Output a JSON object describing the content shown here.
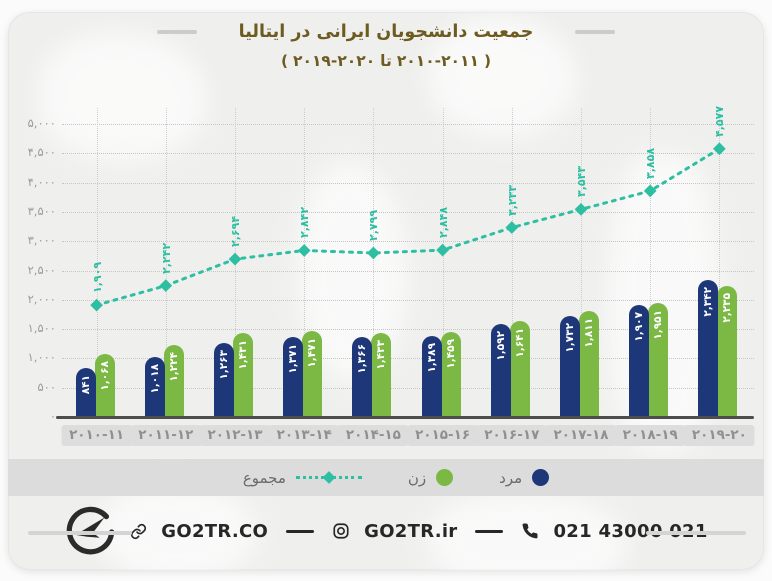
{
  "title": "جمعیت دانشجویان ایرانی در ایتالیا",
  "subtitle": {
    "open": "(",
    "later_range": "۲۰۱۹-۲۰۲۰",
    "connector": "تا",
    "earlier_range": "۲۰۱۰-۲۰۱۱",
    "close": ")"
  },
  "chart_data": {
    "type": "bar",
    "title": "جمعیت دانشجویان ایرانی در ایتالیا (۲۰۱۰-۲۰۱۱ تا ۲۰۱۹-۲۰۲۰)",
    "categories": [
      "2010-11",
      "2011-12",
      "2012-13",
      "2013-14",
      "2014-15",
      "2015-16",
      "2016-17",
      "2017-18",
      "2018-19",
      "2019-20"
    ],
    "x_labels_fa": [
      "۲۰۱۰-۱۱",
      "۲۰۱۱-۱۲",
      "۲۰۱۲-۱۳",
      "۲۰۱۳-۱۴",
      "۲۰۱۴-۱۵",
      "۲۰۱۵-۱۶",
      "۲۰۱۶-۱۷",
      "۲۰۱۷-۱۸",
      "۲۰۱۸-۱۹",
      "۲۰۱۹-۲۰"
    ],
    "series": [
      {
        "name": "مرد",
        "type": "bar",
        "color": "#1d3778",
        "values": [
          841,
          1018,
          1263,
          1371,
          1366,
          1389,
          1592,
          1732,
          1907,
          2342
        ],
        "labels_fa": [
          "۸۴۱",
          "۱,۰۱۸",
          "۱,۲۶۳",
          "۱,۳۷۱",
          "۱,۳۶۶",
          "۱,۳۸۹",
          "۱,۵۹۲",
          "۱,۷۳۲",
          "۱,۹۰۷",
          "۲,۳۴۲"
        ]
      },
      {
        "name": "زن",
        "type": "bar",
        "color": "#7bb844",
        "values": [
          1068,
          1224,
          1431,
          1471,
          1433,
          1459,
          1641,
          1811,
          1951,
          2235
        ],
        "labels_fa": [
          "۱,۰۶۸",
          "۱,۲۲۴",
          "۱,۴۳۱",
          "۱,۴۷۱",
          "۱,۴۳۳",
          "۱,۴۵۹",
          "۱,۶۴۱",
          "۱,۸۱۱",
          "۱,۹۵۱",
          "۲,۲۳۵"
        ]
      },
      {
        "name": "مجموع",
        "type": "line",
        "color": "#2ebfa3",
        "values": [
          1909,
          2242,
          2694,
          2842,
          2799,
          2848,
          3233,
          3543,
          3858,
          4577
        ],
        "labels_fa": [
          "۱,۹۰۹",
          "۲,۲۴۲",
          "۲,۶۹۴",
          "۲,۸۴۲",
          "۲,۷۹۹",
          "۲,۸۴۸",
          "۳,۲۳۳",
          "۳,۵۴۳",
          "۳,۸۵۸",
          "۴,۵۷۷"
        ]
      }
    ],
    "y_ticks": [
      {
        "value": 0,
        "label_fa": "۰"
      },
      {
        "value": 500,
        "label_fa": "۵۰۰"
      },
      {
        "value": 1000,
        "label_fa": "۱,۰۰۰"
      },
      {
        "value": 1500,
        "label_fa": "۱,۵۰۰"
      },
      {
        "value": 2000,
        "label_fa": "۲,۰۰۰"
      },
      {
        "value": 2500,
        "label_fa": "۲,۵۰۰"
      },
      {
        "value": 3000,
        "label_fa": "۳,۰۰۰"
      },
      {
        "value": 3500,
        "label_fa": "۳,۵۰۰"
      },
      {
        "value": 4000,
        "label_fa": "۴,۰۰۰"
      },
      {
        "value": 4500,
        "label_fa": "۴,۵۰۰"
      },
      {
        "value": 5000,
        "label_fa": "۵,۰۰۰"
      }
    ],
    "ylim": [
      0,
      5000
    ],
    "grid": true,
    "legend_position": "bottom"
  },
  "legend": {
    "items": [
      {
        "label": "مرد",
        "color": "#1d3778",
        "marker": "circle"
      },
      {
        "label": "زن",
        "color": "#7bb844",
        "marker": "circle"
      },
      {
        "label": "مجموع",
        "color": "#2ebfa3",
        "marker": "dashed-line"
      }
    ]
  },
  "footer": {
    "website": "GO2TR.CO",
    "instagram": "GO2TR.ir",
    "phone": "021 43000 021"
  },
  "colors": {
    "title": "#6d5b20",
    "men_bar": "#1d3778",
    "women_bar": "#7bb844",
    "total_line": "#2ebfa3",
    "legend_strip": "#dcdcdc",
    "card_bg": "#efefee"
  }
}
